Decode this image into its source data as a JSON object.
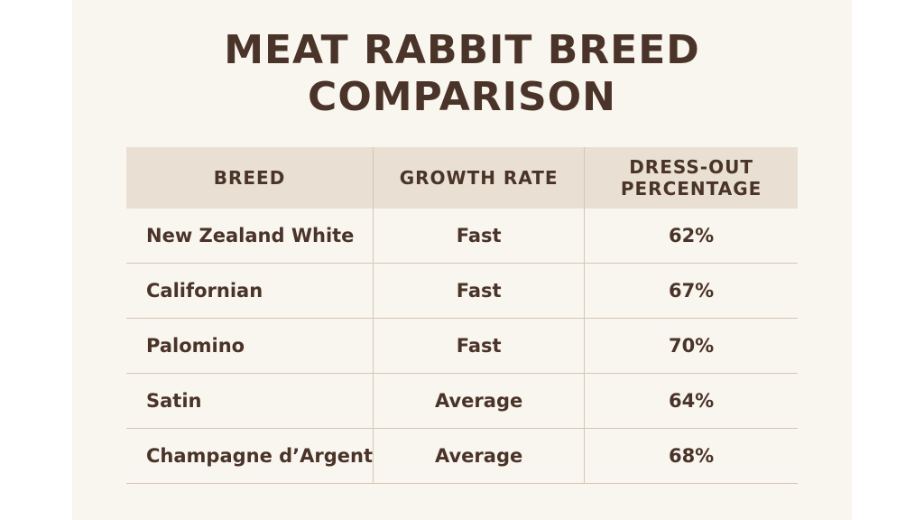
{
  "title": "MEAT RABBIT BREED COMPARISON",
  "table": {
    "headers": {
      "breed": "BREED",
      "growth_rate": "GROWTH RATE",
      "dress_out_line1": "DRESS-OUT",
      "dress_out_line2": "PERCENTAGE"
    },
    "rows": [
      {
        "breed": "New Zealand White",
        "growth_rate": "Fast",
        "dress_out": "62%"
      },
      {
        "breed": "Californian",
        "growth_rate": "Fast",
        "dress_out": "67%"
      },
      {
        "breed": "Palomino",
        "growth_rate": "Fast",
        "dress_out": "70%"
      },
      {
        "breed": "Satin",
        "growth_rate": "Average",
        "dress_out": "64%"
      },
      {
        "breed": "Champagne d’Argent",
        "growth_rate": "Average",
        "dress_out": "68%"
      }
    ]
  },
  "colors": {
    "page_background": "#f9f5ef",
    "header_background": "#e9e0d3",
    "text": "#4a3328",
    "rule": "#d6c6b6"
  }
}
